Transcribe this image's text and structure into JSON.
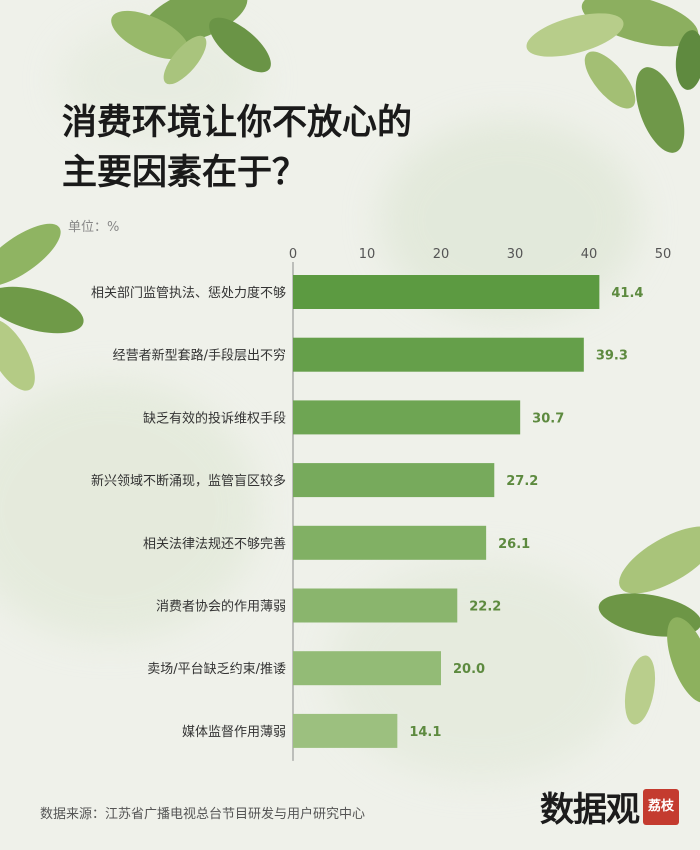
{
  "title": {
    "line1": "消费环境让你不放心的",
    "line2": "主要因素在于？"
  },
  "unit": "单位：%",
  "source": "数据来源：江苏省广播电视总台节目研发与用户研究中心",
  "brand": {
    "name": "数据观",
    "seal": "荔枝"
  },
  "colors": {
    "bar_dark": "#5c9a41",
    "bar_light": "#9cc07f",
    "value_label": "#5d8a3f",
    "accent_red": "#c43b2f"
  },
  "chart_data": {
    "type": "bar",
    "orientation": "horizontal",
    "categories": [
      "相关部门监管执法、惩处力度不够",
      "经营者新型套路/手段层出不穷",
      "缺乏有效的投诉维权手段",
      "新兴领域不断涌现，监管盲区较多",
      "相关法律法规还不够完善",
      "消费者协会的作用薄弱",
      "卖场/平台缺乏约束/推诿",
      "媒体监督作用薄弱"
    ],
    "values": [
      41.4,
      39.3,
      30.7,
      27.2,
      26.1,
      22.2,
      20.0,
      14.1
    ],
    "value_labels": [
      "41.4",
      "39.3",
      "30.7",
      "27.2",
      "26.1",
      "22.2",
      "20.0",
      "14.1"
    ],
    "xlim": [
      0,
      50
    ],
    "xticks": [
      "0",
      "10",
      "20",
      "30",
      "40",
      "50"
    ],
    "tick_values": [
      0,
      10,
      20,
      30,
      40,
      50
    ],
    "unit": "%",
    "grid": false,
    "axis_position": "top"
  }
}
